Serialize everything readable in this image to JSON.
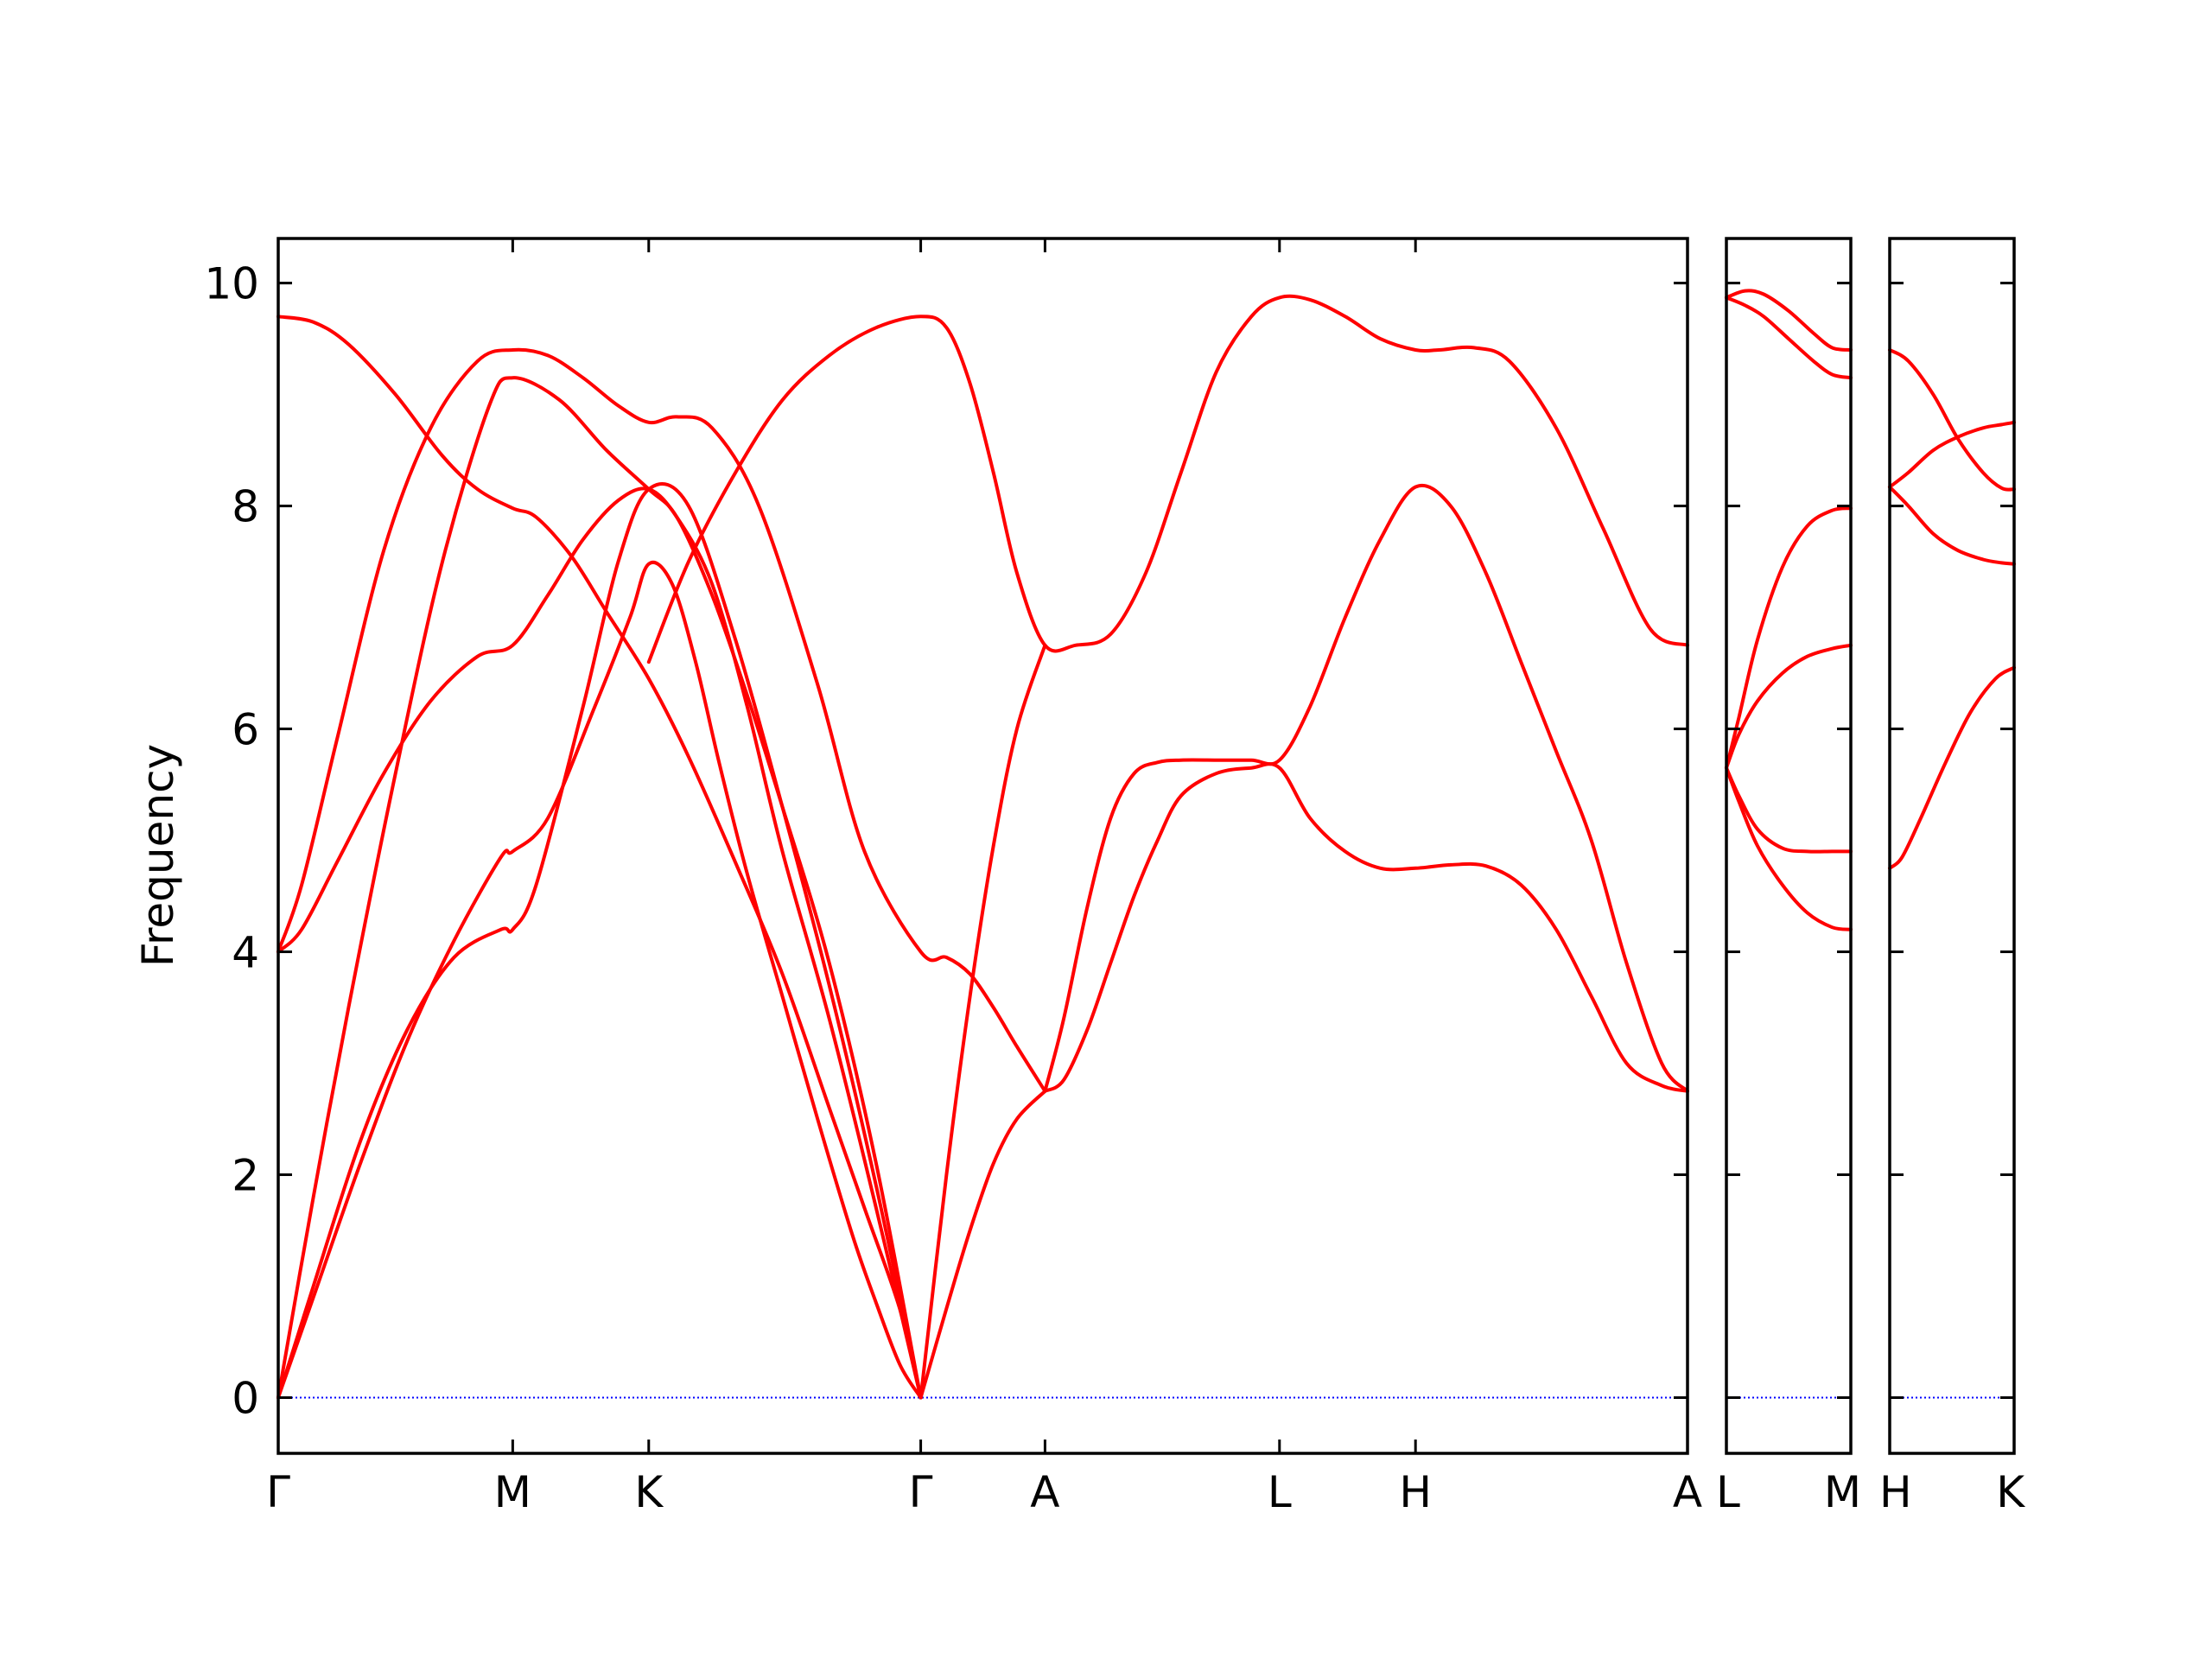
{
  "chart_data": {
    "type": "line",
    "ylabel": "Frequency",
    "ylim": [
      -0.5,
      10.4
    ],
    "yticks": [
      0,
      2,
      4,
      6,
      8,
      10
    ],
    "line_color": "#ff0000",
    "zero_line_color": "#0000ff",
    "panels": [
      {
        "kpoints": [
          {
            "label": "Γ",
            "x": 0.0
          },
          {
            "label": "M",
            "x": 1.0
          },
          {
            "label": "K",
            "x": 1.58
          },
          {
            "label": "Γ",
            "x": 2.74
          },
          {
            "label": "A",
            "x": 3.27
          },
          {
            "label": "L",
            "x": 4.27
          },
          {
            "label": "H",
            "x": 4.85
          },
          {
            "label": "A",
            "x": 6.01
          }
        ],
        "bands": [
          {
            "x": [
              0,
              0.15,
              0.35,
              0.55,
              0.75,
              0.95,
              1.0,
              1.15,
              1.35,
              1.5,
              1.58,
              1.68,
              1.78,
              1.88,
              2.0,
              2.15,
              2.3,
              2.45,
              2.55,
              2.65,
              2.74
            ],
            "y": [
              0,
              0.9,
              2.1,
              3.2,
              4.1,
              4.85,
              4.9,
              5.2,
              6.2,
              7.0,
              7.48,
              7.3,
              6.6,
              5.7,
              4.7,
              3.6,
              2.5,
              1.45,
              0.85,
              0.3,
              0
            ]
          },
          {
            "x": [
              0,
              0.15,
              0.35,
              0.55,
              0.75,
              0.95,
              1.0,
              1.1,
              1.3,
              1.45,
              1.58,
              1.75,
              1.95,
              2.15,
              2.35,
              2.55,
              2.74
            ],
            "y": [
              0,
              1.0,
              2.3,
              3.3,
              3.95,
              4.2,
              4.2,
              4.6,
              6.2,
              7.5,
              8.15,
              8.0,
              6.8,
              5.3,
              3.7,
              1.9,
              0
            ]
          },
          {
            "x": [
              0,
              0.15,
              0.3,
              0.5,
              0.7,
              0.9,
              1.0,
              1.2,
              1.4,
              1.58,
              1.7,
              1.85,
              2.0,
              2.15,
              2.35,
              2.55,
              2.74
            ],
            "y": [
              0,
              1.8,
              3.5,
              5.6,
              7.5,
              8.9,
              9.15,
              8.95,
              8.5,
              8.15,
              7.9,
              7.2,
              6.3,
              5.3,
              3.9,
              2.1,
              0
            ]
          },
          {
            "x": [
              0,
              0.1,
              0.25,
              0.45,
              0.65,
              0.85,
              1.0,
              1.15,
              1.3,
              1.45,
              1.58,
              1.7,
              1.85,
              2.0,
              2.15,
              2.35,
              2.55,
              2.74
            ],
            "y": [
              4.0,
              4.2,
              4.8,
              5.6,
              6.25,
              6.65,
              6.75,
              7.2,
              7.7,
              8.05,
              8.15,
              7.9,
              7.3,
              6.2,
              4.9,
              3.4,
              1.7,
              0
            ]
          },
          {
            "x": [
              0,
              0.1,
              0.25,
              0.45,
              0.65,
              0.85,
              1.0,
              1.15,
              1.3,
              1.45,
              1.58,
              1.7,
              1.85,
              2.05,
              2.3,
              2.5,
              2.74,
              2.85,
              2.95,
              3.05,
              3.15,
              3.27
            ],
            "y": [
              4.0,
              4.6,
              5.9,
              7.6,
              8.7,
              9.3,
              9.4,
              9.35,
              9.15,
              8.9,
              8.75,
              8.8,
              8.7,
              8.0,
              6.4,
              4.9,
              4.0,
              3.95,
              3.8,
              3.5,
              3.15,
              2.75
            ]
          },
          {
            "x": [
              0,
              0.15,
              0.3,
              0.5,
              0.7,
              0.85,
              1.0,
              1.1,
              1.25,
              1.4,
              1.58,
              1.75,
              1.95,
              2.15,
              2.35,
              2.5,
              2.65,
              2.74
            ],
            "y": [
              9.7,
              9.65,
              9.45,
              9.0,
              8.45,
              8.15,
              7.98,
              7.9,
              7.55,
              7.05,
              6.45,
              5.75,
              4.8,
              3.8,
              2.6,
              1.7,
              0.8,
              0
            ]
          },
          {
            "x": [
              2.74,
              2.85,
              2.95,
              3.05,
              3.15,
              3.27
            ],
            "y": [
              0,
              2.0,
              3.6,
              4.95,
              6.0,
              6.75
            ]
          },
          {
            "x": [
              2.74,
              2.85,
              2.95,
              3.05,
              3.15,
              3.27
            ],
            "y": [
              0,
              0.8,
              1.5,
              2.1,
              2.5,
              2.75
            ]
          },
          {
            "x": [
              1.58,
              1.75,
              1.95,
              2.15,
              2.35,
              2.55,
              2.74,
              2.85,
              2.95,
              3.05,
              3.15,
              3.27,
              3.4,
              3.55,
              3.7,
              3.85,
              4.0,
              4.15,
              4.27,
              4.4,
              4.55,
              4.7,
              4.85,
              4.95,
              5.1,
              5.25,
              5.45,
              5.65,
              5.85,
              6.01
            ],
            "y": [
              6.6,
              7.5,
              8.3,
              8.95,
              9.35,
              9.6,
              9.7,
              9.6,
              9.1,
              8.3,
              7.4,
              6.75,
              6.75,
              6.85,
              7.4,
              8.3,
              9.2,
              9.7,
              9.87,
              9.85,
              9.7,
              9.5,
              9.4,
              9.4,
              9.42,
              9.3,
              8.7,
              7.8,
              6.9,
              6.75
            ]
          },
          {
            "x": [
              3.27,
              3.35,
              3.45,
              3.55,
              3.65,
              3.75,
              3.85,
              4.0,
              4.15,
              4.27,
              4.4,
              4.55,
              4.7,
              4.85,
              5.0,
              5.15,
              5.3,
              5.45,
              5.6,
              5.75,
              5.9,
              6.01
            ],
            "y": [
              2.75,
              2.85,
              3.3,
              3.9,
              4.5,
              5.0,
              5.4,
              5.6,
              5.65,
              5.65,
              5.2,
              4.9,
              4.75,
              4.75,
              4.78,
              4.77,
              4.6,
              4.2,
              3.6,
              3.0,
              2.8,
              2.75
            ]
          },
          {
            "x": [
              3.27,
              3.35,
              3.45,
              3.55,
              3.65,
              3.75,
              3.85,
              4.0,
              4.15,
              4.27,
              4.4,
              4.55,
              4.7,
              4.85,
              5.0,
              5.15,
              5.3,
              5.45,
              5.6,
              5.75,
              5.9,
              6.01
            ],
            "y": [
              2.75,
              3.4,
              4.4,
              5.2,
              5.6,
              5.7,
              5.72,
              5.72,
              5.72,
              5.72,
              6.2,
              7.0,
              7.7,
              8.17,
              8.0,
              7.4,
              6.6,
              5.8,
              5.0,
              3.9,
              3.0,
              2.75
            ]
          }
        ]
      },
      {
        "kpoints": [
          {
            "label": "L",
            "x": 0.0
          },
          {
            "label": "M",
            "x": 1.0
          }
        ],
        "bands": [
          {
            "x": [
              0,
              0.15,
              0.3,
              0.5,
              0.7,
              0.85,
              1.0
            ],
            "y": [
              9.87,
              9.93,
              9.9,
              9.75,
              9.55,
              9.42,
              9.4
            ]
          },
          {
            "x": [
              0,
              0.15,
              0.3,
              0.5,
              0.7,
              0.85,
              1.0
            ],
            "y": [
              9.87,
              9.8,
              9.7,
              9.5,
              9.3,
              9.18,
              9.15
            ]
          },
          {
            "x": [
              0,
              0.1,
              0.25,
              0.45,
              0.65,
              0.85,
              1.0
            ],
            "y": [
              5.65,
              6.1,
              6.8,
              7.45,
              7.82,
              7.96,
              7.98
            ]
          },
          {
            "x": [
              0,
              0.1,
              0.25,
              0.45,
              0.65,
              0.85,
              1.0
            ],
            "y": [
              5.65,
              5.95,
              6.25,
              6.5,
              6.65,
              6.72,
              6.75
            ]
          },
          {
            "x": [
              0,
              0.1,
              0.25,
              0.45,
              0.65,
              0.85,
              1.0
            ],
            "y": [
              5.65,
              5.4,
              5.1,
              4.93,
              4.9,
              4.9,
              4.9
            ]
          },
          {
            "x": [
              0,
              0.1,
              0.25,
              0.45,
              0.65,
              0.85,
              1.0
            ],
            "y": [
              5.65,
              5.35,
              4.95,
              4.6,
              4.35,
              4.22,
              4.2
            ]
          }
        ]
      },
      {
        "kpoints": [
          {
            "label": "H",
            "x": 0.0
          },
          {
            "label": "K",
            "x": 1.0
          }
        ],
        "bands": [
          {
            "x": [
              0,
              0.15,
              0.35,
              0.55,
              0.75,
              0.9,
              1.0
            ],
            "y": [
              9.4,
              9.3,
              9.0,
              8.6,
              8.3,
              8.16,
              8.15
            ]
          },
          {
            "x": [
              0,
              0.15,
              0.35,
              0.55,
              0.75,
              0.9,
              1.0
            ],
            "y": [
              8.17,
              8.3,
              8.5,
              8.62,
              8.7,
              8.73,
              8.75
            ]
          },
          {
            "x": [
              0,
              0.15,
              0.35,
              0.55,
              0.75,
              0.9,
              1.0
            ],
            "y": [
              8.17,
              8.0,
              7.75,
              7.6,
              7.52,
              7.49,
              7.48
            ]
          },
          {
            "x": [
              0,
              0.1,
              0.25,
              0.45,
              0.65,
              0.85,
              1.0
            ],
            "y": [
              4.75,
              4.85,
              5.2,
              5.7,
              6.15,
              6.45,
              6.55
            ]
          }
        ]
      }
    ]
  }
}
